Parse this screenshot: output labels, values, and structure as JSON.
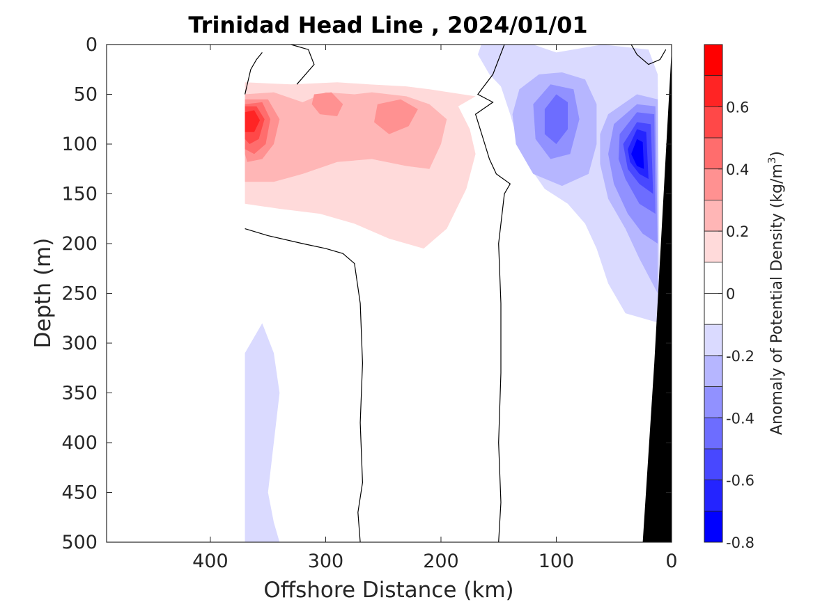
{
  "chart_data": {
    "type": "heatmap",
    "title": "Trinidad Head Line , 2024/01/01",
    "xlabel": "Offshore Distance (km)",
    "ylabel": "Depth (m)",
    "colorbar_label_prefix": "Anomaly of Potential Density (kg/m",
    "colorbar_label_sup": "3",
    "colorbar_label_suffix": ")",
    "x_ticks": [
      "400",
      "300",
      "200",
      "100",
      "0"
    ],
    "y_ticks": [
      "0",
      "50",
      "100",
      "150",
      "200",
      "250",
      "300",
      "350",
      "400",
      "450",
      "500"
    ],
    "colorbar_ticks": [
      "0.6",
      "0.4",
      "0.2",
      "0",
      "-0.2",
      "-0.4",
      "-0.6",
      "-0.8"
    ],
    "xlim": [
      490,
      0
    ],
    "ylim": [
      500,
      0
    ],
    "clim": [
      -0.8,
      0.8
    ],
    "x_reversed": true,
    "y_reversed": true,
    "contour_interval": 0.1,
    "colormap": "blue-white-red",
    "zero_contour_color": "#000000",
    "bathymetry_color": "#000000",
    "colorbar_levels": [
      {
        "range": [
          0.7,
          0.8
        ],
        "color": "#ff0000"
      },
      {
        "range": [
          0.6,
          0.7
        ],
        "color": "#ff2424"
      },
      {
        "range": [
          0.5,
          0.6
        ],
        "color": "#ff4848"
      },
      {
        "range": [
          0.4,
          0.5
        ],
        "color": "#ff6d6d"
      },
      {
        "range": [
          0.3,
          0.4
        ],
        "color": "#ff9191"
      },
      {
        "range": [
          0.2,
          0.3
        ],
        "color": "#ffb6b6"
      },
      {
        "range": [
          0.1,
          0.2
        ],
        "color": "#ffdada"
      },
      {
        "range": [
          0.0,
          0.1
        ],
        "color": "#ffffff"
      },
      {
        "range": [
          -0.1,
          0.0
        ],
        "color": "#ffffff"
      },
      {
        "range": [
          -0.2,
          -0.1
        ],
        "color": "#dadaff"
      },
      {
        "range": [
          -0.3,
          -0.2
        ],
        "color": "#b6b6ff"
      },
      {
        "range": [
          -0.4,
          -0.3
        ],
        "color": "#9191ff"
      },
      {
        "range": [
          -0.5,
          -0.4
        ],
        "color": "#6d6dff"
      },
      {
        "range": [
          -0.6,
          -0.5
        ],
        "color": "#4848ff"
      },
      {
        "range": [
          -0.7,
          -0.6
        ],
        "color": "#2424ff"
      },
      {
        "range": [
          -0.8,
          -0.7
        ],
        "color": "#0000ff"
      }
    ],
    "anomaly_regions": [
      {
        "level": 0.1,
        "polygon": [
          [
            370,
            38
          ],
          [
            330,
            40
          ],
          [
            290,
            38
          ],
          [
            262,
            40
          ],
          [
            230,
            42
          ],
          [
            210,
            45
          ],
          [
            170,
            52
          ],
          [
            185,
            62
          ],
          [
            175,
            85
          ],
          [
            170,
            110
          ],
          [
            178,
            145
          ],
          [
            195,
            185
          ],
          [
            215,
            205
          ],
          [
            245,
            195
          ],
          [
            275,
            180
          ],
          [
            305,
            170
          ],
          [
            340,
            165
          ],
          [
            370,
            160
          ]
        ]
      },
      {
        "level": 0.2,
        "polygon": [
          [
            370,
            50
          ],
          [
            345,
            48
          ],
          [
            320,
            58
          ],
          [
            300,
            48
          ],
          [
            275,
            50
          ],
          [
            260,
            48
          ],
          [
            230,
            52
          ],
          [
            210,
            60
          ],
          [
            195,
            75
          ],
          [
            200,
            100
          ],
          [
            210,
            125
          ],
          [
            230,
            122
          ],
          [
            260,
            115
          ],
          [
            290,
            118
          ],
          [
            320,
            130
          ],
          [
            345,
            138
          ],
          [
            370,
            138
          ]
        ]
      },
      {
        "level": 0.3,
        "polygon": [
          [
            370,
            55
          ],
          [
            350,
            55
          ],
          [
            340,
            75
          ],
          [
            345,
            100
          ],
          [
            355,
            115
          ],
          [
            368,
            118
          ],
          [
            370,
            110
          ]
        ]
      },
      {
        "level": 0.3,
        "polygon": [
          [
            310,
            50
          ],
          [
            295,
            48
          ],
          [
            285,
            60
          ],
          [
            290,
            72
          ],
          [
            305,
            70
          ],
          [
            312,
            60
          ]
        ]
      },
      {
        "level": 0.3,
        "polygon": [
          [
            255,
            60
          ],
          [
            235,
            55
          ],
          [
            220,
            65
          ],
          [
            228,
            82
          ],
          [
            245,
            90
          ],
          [
            258,
            78
          ]
        ]
      },
      {
        "level": 0.4,
        "polygon": [
          [
            370,
            60
          ],
          [
            355,
            58
          ],
          [
            348,
            75
          ],
          [
            352,
            100
          ],
          [
            362,
            110
          ],
          [
            370,
            105
          ]
        ]
      },
      {
        "level": 0.5,
        "polygon": [
          [
            370,
            62
          ],
          [
            360,
            62
          ],
          [
            353,
            75
          ],
          [
            358,
            95
          ],
          [
            366,
            100
          ],
          [
            370,
            95
          ]
        ]
      },
      {
        "level": 0.6,
        "polygon": [
          [
            370,
            68
          ],
          [
            362,
            66
          ],
          [
            357,
            76
          ],
          [
            362,
            88
          ],
          [
            370,
            88
          ]
        ]
      },
      {
        "level": -0.1,
        "polygon": [
          [
            165,
            0
          ],
          [
            120,
            0
          ],
          [
            100,
            8
          ],
          [
            60,
            0
          ],
          [
            20,
            5
          ],
          [
            12,
            30
          ],
          [
            10,
            280
          ],
          [
            40,
            270
          ],
          [
            55,
            240
          ],
          [
            65,
            205
          ],
          [
            75,
            180
          ],
          [
            90,
            160
          ],
          [
            110,
            145
          ],
          [
            125,
            120
          ],
          [
            135,
            90
          ],
          [
            140,
            70
          ],
          [
            148,
            42
          ],
          [
            158,
            30
          ],
          [
            168,
            10
          ]
        ]
      },
      {
        "level": -0.1,
        "polygon": [
          [
            370,
            310
          ],
          [
            355,
            280
          ],
          [
            345,
            310
          ],
          [
            340,
            350
          ],
          [
            345,
            400
          ],
          [
            350,
            450
          ],
          [
            345,
            480
          ],
          [
            340,
            500
          ],
          [
            370,
            500
          ]
        ]
      },
      {
        "level": -0.2,
        "polygon": [
          [
            132,
            45
          ],
          [
            115,
            30
          ],
          [
            95,
            28
          ],
          [
            75,
            35
          ],
          [
            65,
            60
          ],
          [
            65,
            100
          ],
          [
            72,
            130
          ],
          [
            95,
            142
          ],
          [
            120,
            130
          ],
          [
            135,
            100
          ],
          [
            138,
            70
          ]
        ]
      },
      {
        "level": -0.2,
        "polygon": [
          [
            55,
            70
          ],
          [
            30,
            50
          ],
          [
            12,
            55
          ],
          [
            12,
            250
          ],
          [
            28,
            215
          ],
          [
            40,
            185
          ],
          [
            55,
            155
          ],
          [
            62,
            120
          ],
          [
            62,
            90
          ]
        ]
      },
      {
        "level": -0.3,
        "polygon": [
          [
            120,
            60
          ],
          [
            105,
            40
          ],
          [
            85,
            45
          ],
          [
            80,
            75
          ],
          [
            88,
            110
          ],
          [
            105,
            115
          ],
          [
            118,
            95
          ]
        ]
      },
      {
        "level": -0.3,
        "polygon": [
          [
            50,
            80
          ],
          [
            30,
            60
          ],
          [
            14,
            62
          ],
          [
            12,
            200
          ],
          [
            25,
            190
          ],
          [
            38,
            170
          ],
          [
            50,
            140
          ],
          [
            55,
            110
          ]
        ]
      },
      {
        "level": -0.4,
        "polygon": [
          [
            110,
            65
          ],
          [
            100,
            50
          ],
          [
            90,
            58
          ],
          [
            90,
            85
          ],
          [
            100,
            100
          ],
          [
            110,
            90
          ]
        ]
      },
      {
        "level": -0.4,
        "polygon": [
          [
            45,
            90
          ],
          [
            30,
            68
          ],
          [
            15,
            70
          ],
          [
            14,
            170
          ],
          [
            28,
            160
          ],
          [
            40,
            135
          ],
          [
            46,
            115
          ]
        ]
      },
      {
        "level": -0.5,
        "polygon": [
          [
            42,
            100
          ],
          [
            30,
            78
          ],
          [
            18,
            80
          ],
          [
            16,
            150
          ],
          [
            28,
            140
          ],
          [
            38,
            125
          ]
        ]
      },
      {
        "level": -0.6,
        "polygon": [
          [
            38,
            105
          ],
          [
            30,
            85
          ],
          [
            22,
            88
          ],
          [
            20,
            135
          ],
          [
            28,
            130
          ],
          [
            36,
            118
          ]
        ]
      },
      {
        "level": -0.7,
        "polygon": [
          [
            35,
            110
          ],
          [
            30,
            95
          ],
          [
            25,
            98
          ],
          [
            24,
            125
          ],
          [
            30,
            122
          ]
        ]
      }
    ],
    "zero_contours": [
      [
        [
          370,
          185
        ],
        [
          350,
          192
        ],
        [
          320,
          200
        ],
        [
          300,
          205
        ],
        [
          285,
          210
        ],
        [
          275,
          220
        ],
        [
          270,
          260
        ],
        [
          268,
          320
        ],
        [
          270,
          380
        ],
        [
          268,
          440
        ],
        [
          272,
          470
        ],
        [
          270,
          500
        ]
      ],
      [
        [
          145,
          0
        ],
        [
          155,
          30
        ],
        [
          168,
          50
        ],
        [
          155,
          58
        ],
        [
          170,
          70
        ],
        [
          162,
          100
        ],
        [
          158,
          115
        ],
        [
          152,
          130
        ],
        [
          140,
          140
        ],
        [
          145,
          150
        ],
        [
          150,
          200
        ],
        [
          148,
          260
        ],
        [
          148,
          330
        ],
        [
          150,
          400
        ],
        [
          148,
          460
        ],
        [
          150,
          500
        ]
      ],
      [
        [
          330,
          0
        ],
        [
          315,
          5
        ],
        [
          310,
          20
        ],
        [
          325,
          40
        ]
      ],
      [
        [
          35,
          0
        ],
        [
          30,
          10
        ],
        [
          20,
          20
        ],
        [
          10,
          15
        ],
        [
          5,
          5
        ]
      ],
      [
        [
          370,
          50
        ],
        [
          365,
          25
        ],
        [
          360,
          15
        ],
        [
          355,
          8
        ]
      ]
    ],
    "bathymetry_polygon": [
      [
        0,
        5
      ],
      [
        15,
        320
      ],
      [
        25,
        500
      ],
      [
        0,
        500
      ]
    ]
  }
}
